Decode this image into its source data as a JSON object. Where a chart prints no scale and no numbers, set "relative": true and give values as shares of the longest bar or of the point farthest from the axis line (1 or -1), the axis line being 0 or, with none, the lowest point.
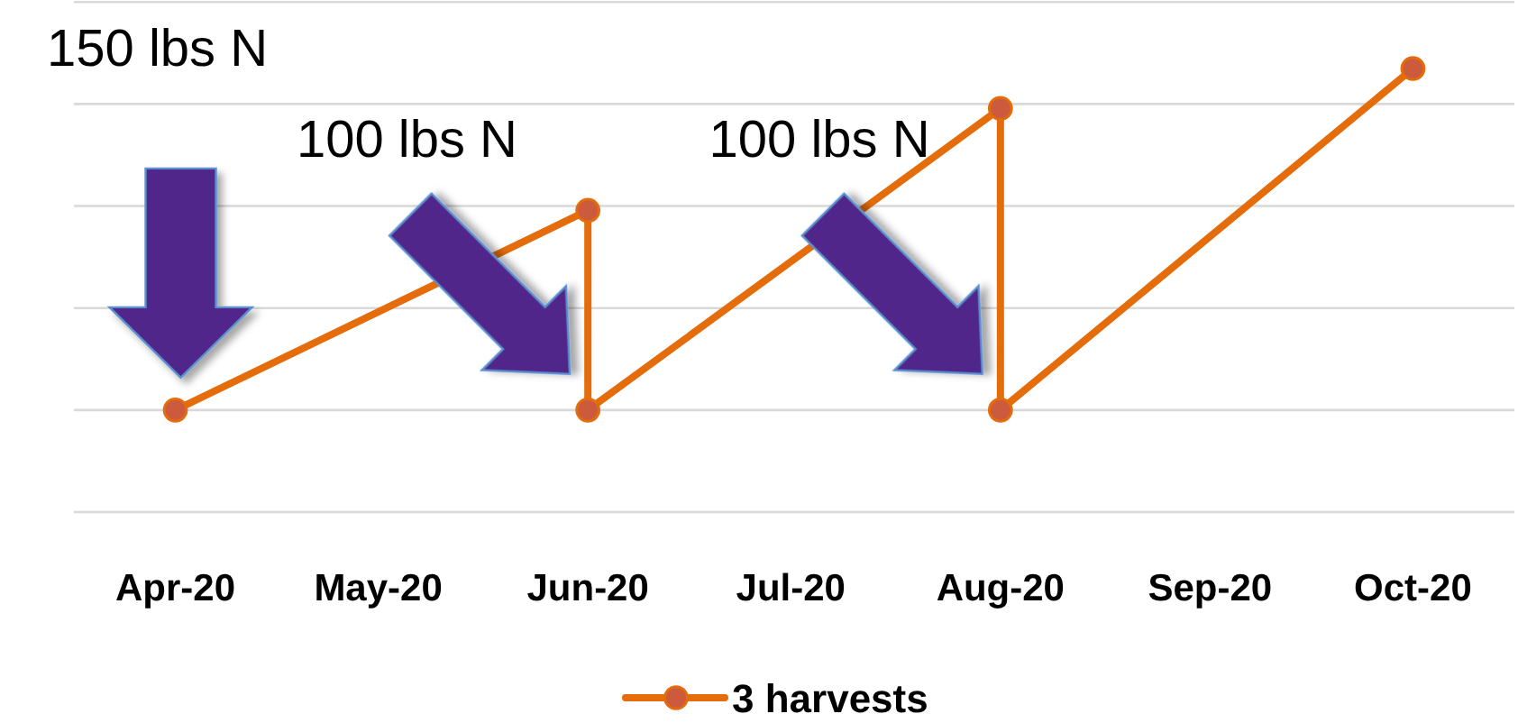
{
  "chart_data": {
    "type": "line",
    "relative": true,
    "x": [
      "2020-04",
      "2020-06",
      "2020-06",
      "2020-08",
      "2020-08",
      "2020-10"
    ],
    "xlim": [
      "2020-03-17",
      "2020-10-16"
    ],
    "xticks": [
      {
        "value": "2020-04",
        "label": "Apr-20"
      },
      {
        "value": "2020-05",
        "label": "May-20"
      },
      {
        "value": "2020-06",
        "label": "Jun-20"
      },
      {
        "value": "2020-07",
        "label": "Jul-20"
      },
      {
        "value": "2020-08",
        "label": "Aug-20"
      },
      {
        "value": "2020-09",
        "label": "Sep-20"
      },
      {
        "value": "2020-10",
        "label": "Oct-20"
      }
    ],
    "series": [
      {
        "name": "3 harvests",
        "color": "#e46c0a",
        "values": [
          0.23,
          0.68,
          0.23,
          0.91,
          0.23,
          1
        ]
      }
    ],
    "marker": "circle",
    "grid": "y",
    "legend": "bottom",
    "annotations": [
      "150 lbs N",
      "100 lbs N",
      "100 lbs N"
    ]
  }
}
